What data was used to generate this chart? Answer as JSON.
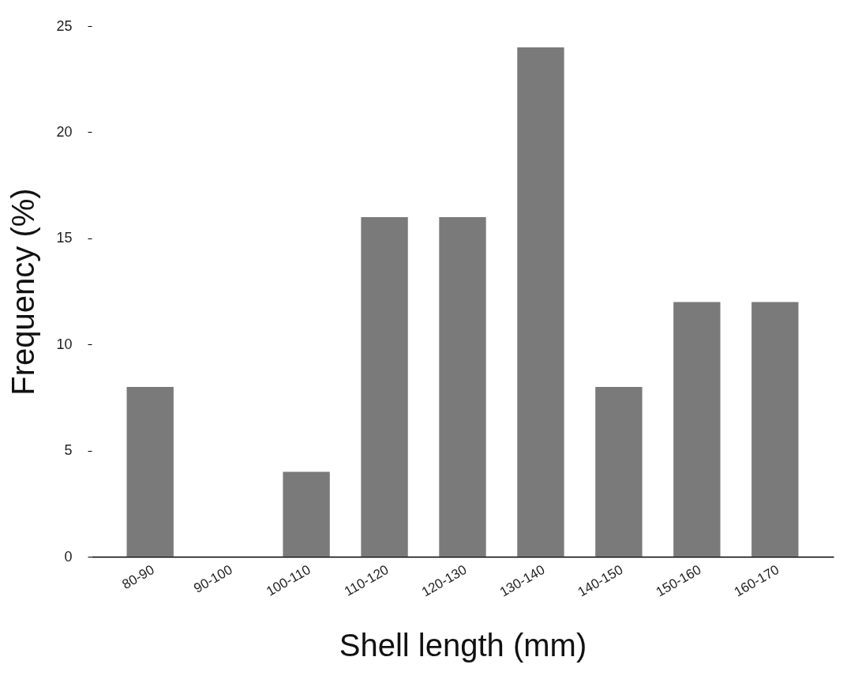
{
  "chart_data": {
    "type": "bar",
    "xlabel": "Shell length (mm)",
    "ylabel": "Frequency (%)",
    "categories": [
      "80-90",
      "90-100",
      "100-110",
      "110-120",
      "120-130",
      "130-140",
      "140-150",
      "150-160",
      "160-170"
    ],
    "values": [
      8,
      0,
      4,
      16,
      16,
      24,
      8,
      12,
      12
    ],
    "color": "#7a7a7a",
    "ylim": [
      0,
      25
    ],
    "yticks": [
      0,
      5,
      10,
      15,
      20,
      25
    ],
    "grid": false
  }
}
